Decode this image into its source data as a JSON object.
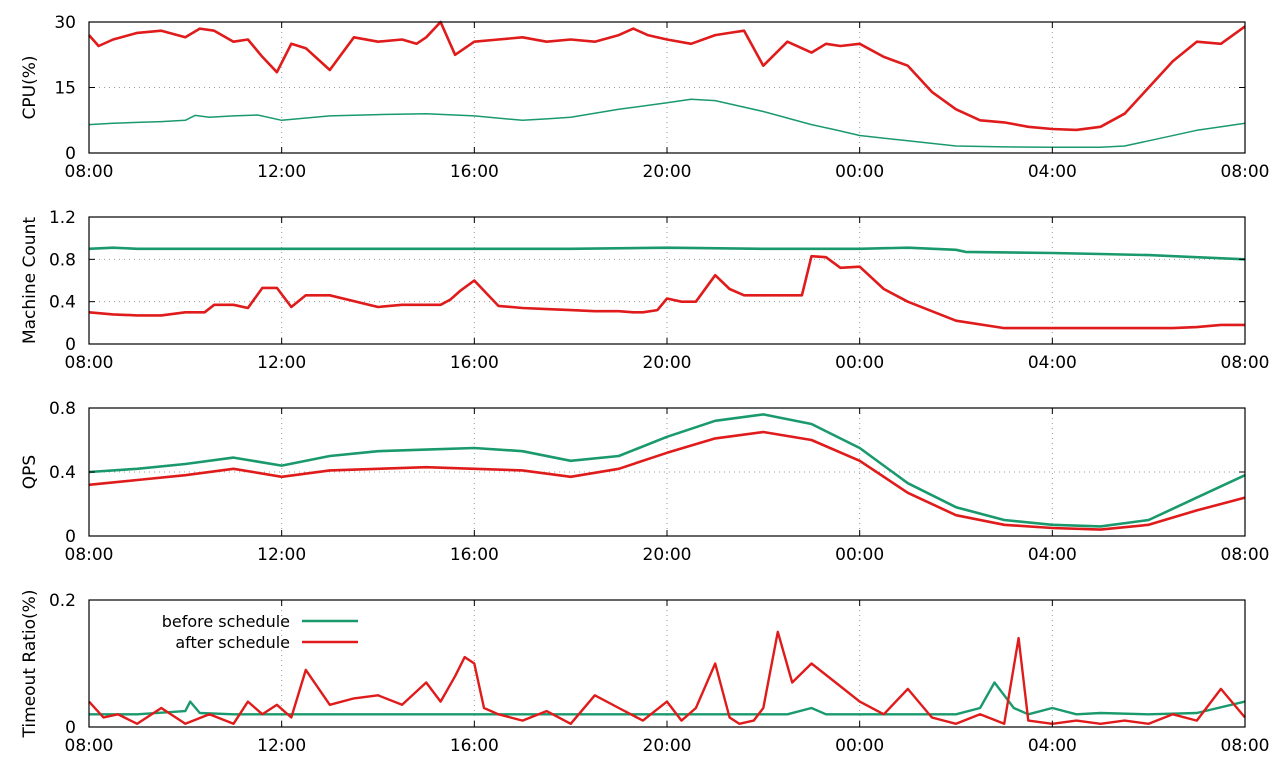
{
  "chart_data": [
    {
      "type": "line",
      "ylabel": "CPU(%)",
      "xticks": [
        "08:00",
        "12:00",
        "16:00",
        "20:00",
        "00:00",
        "04:00",
        "08:00"
      ],
      "xlim": [
        0,
        24
      ],
      "ylim": [
        0,
        30
      ],
      "yticks": [
        "0",
        "15",
        "30"
      ],
      "ytick_values": [
        0,
        15,
        30
      ],
      "series": [
        {
          "color": "#1a9a6c",
          "width": 1.5,
          "x": [
            0,
            0.5,
            1,
            1.5,
            2,
            2.2,
            2.5,
            3,
            3.5,
            4,
            5,
            6,
            7,
            8,
            9,
            9.5,
            10,
            11,
            12,
            12.5,
            13,
            14,
            15,
            15.5,
            16,
            17,
            18,
            19,
            20,
            21,
            21.5,
            22,
            23,
            24
          ],
          "y": [
            6.5,
            6.8,
            7,
            7.2,
            7.5,
            8.6,
            8.2,
            8.5,
            8.7,
            7.5,
            8.5,
            8.8,
            9,
            8.5,
            7.5,
            7.8,
            8.2,
            10,
            11.5,
            12.3,
            12,
            9.5,
            6.5,
            5.3,
            4,
            2.8,
            1.6,
            1.4,
            1.3,
            1.3,
            1.6,
            2.8,
            5.2,
            6.8
          ]
        },
        {
          "color": "#e01b1b",
          "width": 2.6,
          "x": [
            0,
            0.2,
            0.5,
            1,
            1.5,
            2,
            2.3,
            2.6,
            3,
            3.3,
            3.6,
            3.9,
            4.2,
            4.5,
            5,
            5.5,
            6,
            6.5,
            6.8,
            7,
            7.3,
            7.6,
            8,
            8.5,
            9,
            9.5,
            10,
            10.5,
            11,
            11.3,
            11.6,
            12,
            12.5,
            13,
            13.3,
            13.6,
            14,
            14.5,
            15,
            15.3,
            15.6,
            16,
            16.5,
            17,
            17.5,
            18,
            18.5,
            19,
            19.5,
            20,
            20.5,
            21,
            21.5,
            22,
            22.5,
            23,
            23.5,
            24
          ],
          "y": [
            27,
            24.5,
            26,
            27.5,
            28,
            26.5,
            28.5,
            28,
            25.5,
            26,
            22,
            18.5,
            25,
            24,
            19,
            26.5,
            25.5,
            26,
            25,
            26.5,
            30,
            22.5,
            25.5,
            26,
            26.5,
            25.5,
            26,
            25.5,
            27,
            28.5,
            27,
            26,
            25,
            27,
            27.5,
            28,
            20,
            25.5,
            23,
            25,
            24.5,
            25,
            22,
            20,
            14,
            10,
            7.5,
            7,
            6,
            5.5,
            5.3,
            6,
            9,
            15,
            21,
            25.5,
            25,
            29
          ]
        }
      ]
    },
    {
      "type": "line",
      "ylabel": "Machine Count",
      "xticks": [
        "08:00",
        "12:00",
        "16:00",
        "20:00",
        "00:00",
        "04:00",
        "08:00"
      ],
      "xlim": [
        0,
        24
      ],
      "ylim": [
        0,
        1.2
      ],
      "yticks": [
        "0",
        "0.4",
        "0.8",
        "1.2"
      ],
      "ytick_values": [
        0,
        0.4,
        0.8,
        1.2
      ],
      "series": [
        {
          "color": "#1a9a6c",
          "width": 2.6,
          "x": [
            0,
            0.5,
            1,
            3,
            6,
            10,
            12,
            14,
            16,
            17,
            18,
            18.2,
            20,
            21,
            22,
            24
          ],
          "y": [
            0.9,
            0.91,
            0.9,
            0.9,
            0.9,
            0.9,
            0.91,
            0.9,
            0.9,
            0.91,
            0.89,
            0.87,
            0.86,
            0.85,
            0.84,
            0.8
          ]
        },
        {
          "color": "#e01b1b",
          "width": 2.6,
          "x": [
            0,
            0.5,
            1,
            1.5,
            2,
            2.4,
            2.6,
            3,
            3.3,
            3.6,
            3.9,
            4.2,
            4.5,
            5,
            6,
            6.5,
            7,
            7.3,
            7.5,
            7.7,
            8,
            8.5,
            9,
            9.5,
            10,
            10.5,
            11,
            11.3,
            11.5,
            11.8,
            12,
            12.3,
            12.6,
            13,
            13.3,
            13.6,
            14,
            14.4,
            14.8,
            15,
            15.3,
            15.6,
            16,
            16.5,
            17,
            18,
            19,
            20,
            20.5,
            22,
            22.5,
            23,
            23.5,
            24
          ],
          "y": [
            0.3,
            0.28,
            0.27,
            0.27,
            0.3,
            0.3,
            0.37,
            0.37,
            0.34,
            0.53,
            0.53,
            0.35,
            0.46,
            0.46,
            0.35,
            0.37,
            0.37,
            0.37,
            0.42,
            0.5,
            0.6,
            0.36,
            0.34,
            0.33,
            0.32,
            0.31,
            0.31,
            0.3,
            0.3,
            0.32,
            0.43,
            0.4,
            0.4,
            0.65,
            0.52,
            0.46,
            0.46,
            0.46,
            0.46,
            0.83,
            0.82,
            0.72,
            0.73,
            0.52,
            0.4,
            0.22,
            0.15,
            0.15,
            0.15,
            0.15,
            0.15,
            0.16,
            0.18,
            0.18
          ]
        }
      ]
    },
    {
      "type": "line",
      "ylabel": "QPS",
      "xticks": [
        "08:00",
        "12:00",
        "16:00",
        "20:00",
        "00:00",
        "04:00",
        "08:00"
      ],
      "xlim": [
        0,
        24
      ],
      "ylim": [
        0,
        0.8
      ],
      "yticks": [
        "0",
        "0.4",
        "0.8"
      ],
      "ytick_values": [
        0,
        0.4,
        0.8
      ],
      "series": [
        {
          "color": "#1a9a6c",
          "width": 2.6,
          "x": [
            0,
            1,
            2,
            3,
            4,
            5,
            6,
            7,
            8,
            9,
            10,
            11,
            12,
            13,
            14,
            15,
            16,
            17,
            18,
            19,
            20,
            21,
            22,
            23,
            24
          ],
          "y": [
            0.4,
            0.42,
            0.45,
            0.49,
            0.44,
            0.5,
            0.53,
            0.54,
            0.55,
            0.53,
            0.47,
            0.5,
            0.62,
            0.72,
            0.76,
            0.7,
            0.55,
            0.33,
            0.18,
            0.1,
            0.07,
            0.06,
            0.1,
            0.24,
            0.38
          ]
        },
        {
          "color": "#e01b1b",
          "width": 2.6,
          "x": [
            0,
            1,
            2,
            3,
            4,
            5,
            6,
            7,
            8,
            9,
            10,
            11,
            12,
            13,
            14,
            15,
            16,
            17,
            18,
            19,
            20,
            21,
            22,
            23,
            24
          ],
          "y": [
            0.32,
            0.35,
            0.38,
            0.42,
            0.37,
            0.41,
            0.42,
            0.43,
            0.42,
            0.41,
            0.37,
            0.42,
            0.52,
            0.61,
            0.65,
            0.6,
            0.47,
            0.27,
            0.13,
            0.07,
            0.05,
            0.04,
            0.07,
            0.16,
            0.24
          ]
        }
      ]
    },
    {
      "type": "line",
      "ylabel": "Timeout Ratio(%)",
      "xticks": [
        "08:00",
        "12:00",
        "16:00",
        "20:00",
        "00:00",
        "04:00",
        "08:00"
      ],
      "xlim": [
        0,
        24
      ],
      "ylim": [
        0,
        0.2
      ],
      "yticks": [
        "0",
        "0.2"
      ],
      "ytick_values": [
        0,
        0.2
      ],
      "legend": {
        "position": "top-left",
        "entries": [
          "before schedule",
          "after schedule"
        ]
      },
      "series": [
        {
          "name": "before schedule",
          "color": "#1a9a6c",
          "width": 2.4,
          "x": [
            0,
            1,
            2,
            2.1,
            2.3,
            3,
            4,
            5,
            6,
            8,
            10,
            12,
            14,
            14.5,
            15,
            15.3,
            16,
            18,
            18.5,
            18.8,
            19.2,
            19.5,
            20,
            20.5,
            21,
            22,
            23,
            24
          ],
          "y": [
            0.02,
            0.02,
            0.025,
            0.04,
            0.022,
            0.02,
            0.02,
            0.02,
            0.02,
            0.02,
            0.02,
            0.02,
            0.02,
            0.02,
            0.03,
            0.02,
            0.02,
            0.02,
            0.03,
            0.07,
            0.03,
            0.02,
            0.03,
            0.02,
            0.022,
            0.02,
            0.022,
            0.04
          ]
        },
        {
          "name": "after schedule",
          "color": "#e01b1b",
          "width": 2.4,
          "x": [
            0,
            0.3,
            0.6,
            1,
            1.5,
            2,
            2.5,
            3,
            3.3,
            3.6,
            3.9,
            4.2,
            4.5,
            5,
            5.5,
            6,
            6.5,
            7,
            7.3,
            7.6,
            7.8,
            8,
            8.2,
            8.5,
            9,
            9.5,
            10,
            10.5,
            11,
            11.5,
            12,
            12.3,
            12.6,
            13,
            13.3,
            13.5,
            13.8,
            14,
            14.3,
            14.6,
            15,
            15.5,
            16,
            16.5,
            17,
            17.5,
            18,
            18.5,
            19,
            19.3,
            19.5,
            20,
            20.5,
            21,
            21.5,
            22,
            22.5,
            23,
            23.5,
            24
          ],
          "y": [
            0.04,
            0.015,
            0.02,
            0.005,
            0.03,
            0.005,
            0.02,
            0.005,
            0.04,
            0.02,
            0.035,
            0.015,
            0.09,
            0.035,
            0.045,
            0.05,
            0.035,
            0.07,
            0.04,
            0.08,
            0.11,
            0.1,
            0.03,
            0.02,
            0.01,
            0.025,
            0.005,
            0.05,
            0.03,
            0.01,
            0.04,
            0.01,
            0.03,
            0.1,
            0.015,
            0.005,
            0.01,
            0.03,
            0.15,
            0.07,
            0.1,
            0.07,
            0.04,
            0.02,
            0.06,
            0.015,
            0.005,
            0.02,
            0.005,
            0.14,
            0.01,
            0.005,
            0.01,
            0.005,
            0.01,
            0.005,
            0.02,
            0.01,
            0.06,
            0.015
          ]
        }
      ]
    }
  ]
}
